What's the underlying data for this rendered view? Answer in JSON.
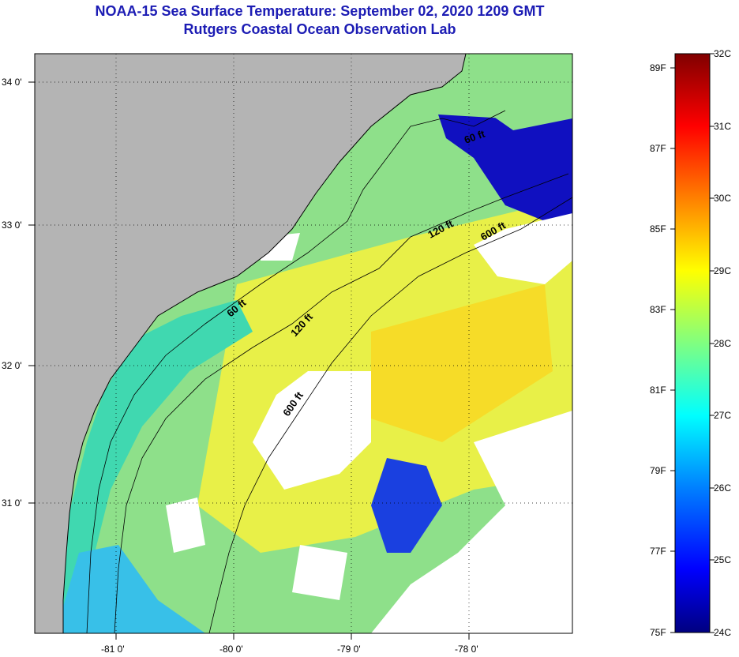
{
  "header": {
    "title": "NOAA-15 Sea Surface Temperature:  September 02, 2020 1209 GMT",
    "subtitle": "Rutgers Coastal Ocean Observation Lab"
  },
  "map": {
    "lon_labels": [
      "-81 0'",
      "-80 0'",
      "-79 0'",
      "-78 0'"
    ],
    "lat_labels": [
      "34 0'",
      "33 0'",
      "32 0'",
      "31 0'"
    ],
    "lon_range": [
      -81.6,
      -77.1
    ],
    "lat_range": [
      30.1,
      34.2
    ],
    "grid": "dotted",
    "land_color": "#b4b4b4",
    "cloud_color": "#ffffff",
    "contours": [
      {
        "label": "60 ft"
      },
      {
        "label": "120 ft"
      },
      {
        "label": "600 ft"
      }
    ],
    "contour_labels_north": [
      "60 ft",
      "120 ft",
      "600 ft"
    ],
    "contour_labels_south": [
      "60 ft",
      "120 ft",
      "600 ft"
    ]
  },
  "colorbar": {
    "celsius": [
      "32C",
      "31C",
      "30C",
      "29C",
      "28C",
      "27C",
      "26C",
      "25C",
      "24C"
    ],
    "fahrenheit": [
      "89F",
      "87F",
      "85F",
      "83F",
      "81F",
      "79F",
      "77F",
      "75F"
    ],
    "range_c": [
      24,
      32
    ],
    "colors": [
      "#000080",
      "#0000ff",
      "#0080ff",
      "#00ffff",
      "#80ff80",
      "#ffff00",
      "#ff8000",
      "#ff0000",
      "#800000"
    ]
  }
}
